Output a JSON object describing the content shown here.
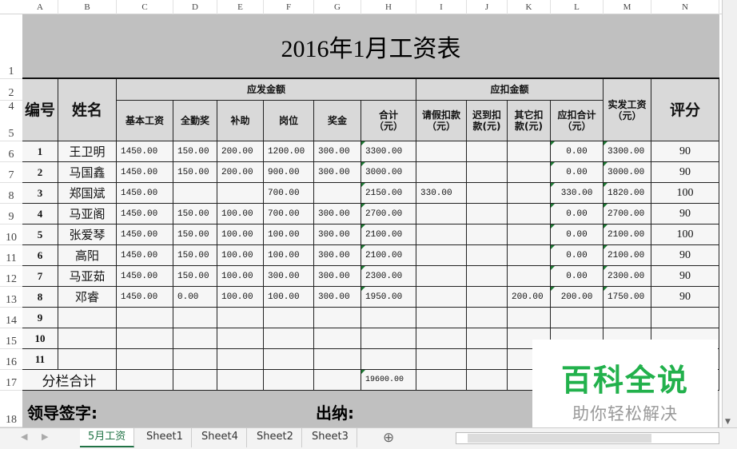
{
  "columns": [
    "A",
    "B",
    "C",
    "D",
    "E",
    "F",
    "G",
    "H",
    "I",
    "J",
    "K",
    "L",
    "M",
    "N"
  ],
  "row_numbers": [
    "1",
    "2",
    "4",
    "5",
    "6",
    "7",
    "8",
    "9",
    "10",
    "11",
    "12",
    "13",
    "14",
    "15",
    "16",
    "17",
    "18"
  ],
  "title": "2016年1月工资表",
  "headers": {
    "id": "编号",
    "name": "姓名",
    "gross": "应发金额",
    "base": "基本工资",
    "attendance": "全勤奖",
    "subsidy": "补助",
    "post": "岗位",
    "bonus": "奖金",
    "gross_total": "合计（元）",
    "deduct": "应扣金额",
    "leave": "请假扣款（元）",
    "late": "迟到扣款(元)",
    "other": "其它扣款(元)",
    "deduct_total": "应扣合计（元）",
    "net": "实发工资（元）",
    "score": "评分"
  },
  "rows": [
    [
      "1",
      "王卫明",
      "1450.00",
      "150.00",
      "200.00",
      "1200.00",
      "300.00",
      "3300.00",
      "",
      "",
      "",
      "0.00",
      "3300.00",
      "90"
    ],
    [
      "2",
      "马国鑫",
      "1450.00",
      "150.00",
      "200.00",
      "900.00",
      "300.00",
      "3000.00",
      "",
      "",
      "",
      "0.00",
      "3000.00",
      "90"
    ],
    [
      "3",
      "郑国斌",
      "1450.00",
      "",
      "",
      "700.00",
      "",
      "2150.00",
      "330.00",
      "",
      "",
      "330.00",
      "1820.00",
      "100"
    ],
    [
      "4",
      "马亚阁",
      "1450.00",
      "150.00",
      "100.00",
      "700.00",
      "300.00",
      "2700.00",
      "",
      "",
      "",
      "0.00",
      "2700.00",
      "90"
    ],
    [
      "5",
      "张爱琴",
      "1450.00",
      "150.00",
      "100.00",
      "100.00",
      "300.00",
      "2100.00",
      "",
      "",
      "",
      "0.00",
      "2100.00",
      "100"
    ],
    [
      "6",
      "高阳",
      "1450.00",
      "150.00",
      "100.00",
      "100.00",
      "300.00",
      "2100.00",
      "",
      "",
      "",
      "0.00",
      "2100.00",
      "90"
    ],
    [
      "7",
      "马亚茹",
      "1450.00",
      "150.00",
      "100.00",
      "300.00",
      "300.00",
      "2300.00",
      "",
      "",
      "",
      "0.00",
      "2300.00",
      "90"
    ],
    [
      "8",
      "邓睿",
      "1450.00",
      "0.00",
      "100.00",
      "100.00",
      "300.00",
      "1950.00",
      "",
      "",
      "200.00",
      "200.00",
      "1750.00",
      "90"
    ],
    [
      "9",
      "",
      "",
      "",
      "",
      "",
      "",
      "",
      "",
      "",
      "",
      "",
      "",
      ""
    ],
    [
      "10",
      "",
      "",
      "",
      "",
      "",
      "",
      "",
      "",
      "",
      "",
      "",
      "",
      ""
    ],
    [
      "11",
      "",
      "",
      "",
      "",
      "",
      "",
      "",
      "",
      "",
      "",
      "",
      "",
      ""
    ]
  ],
  "subtotal": {
    "label": "分栏合计",
    "value": "19600.00"
  },
  "sign": {
    "leader": "领导签字:",
    "cashier": "出纳:"
  },
  "tabs": [
    "5月工资",
    "Sheet1",
    "Sheet4",
    "Sheet2",
    "Sheet3"
  ],
  "active_tab": "5月工资",
  "watermark": {
    "brand": "百科全说",
    "slogan": "助你轻松解决"
  },
  "colors": {
    "accent": "#217346",
    "watermark_green": "#22b14c"
  }
}
